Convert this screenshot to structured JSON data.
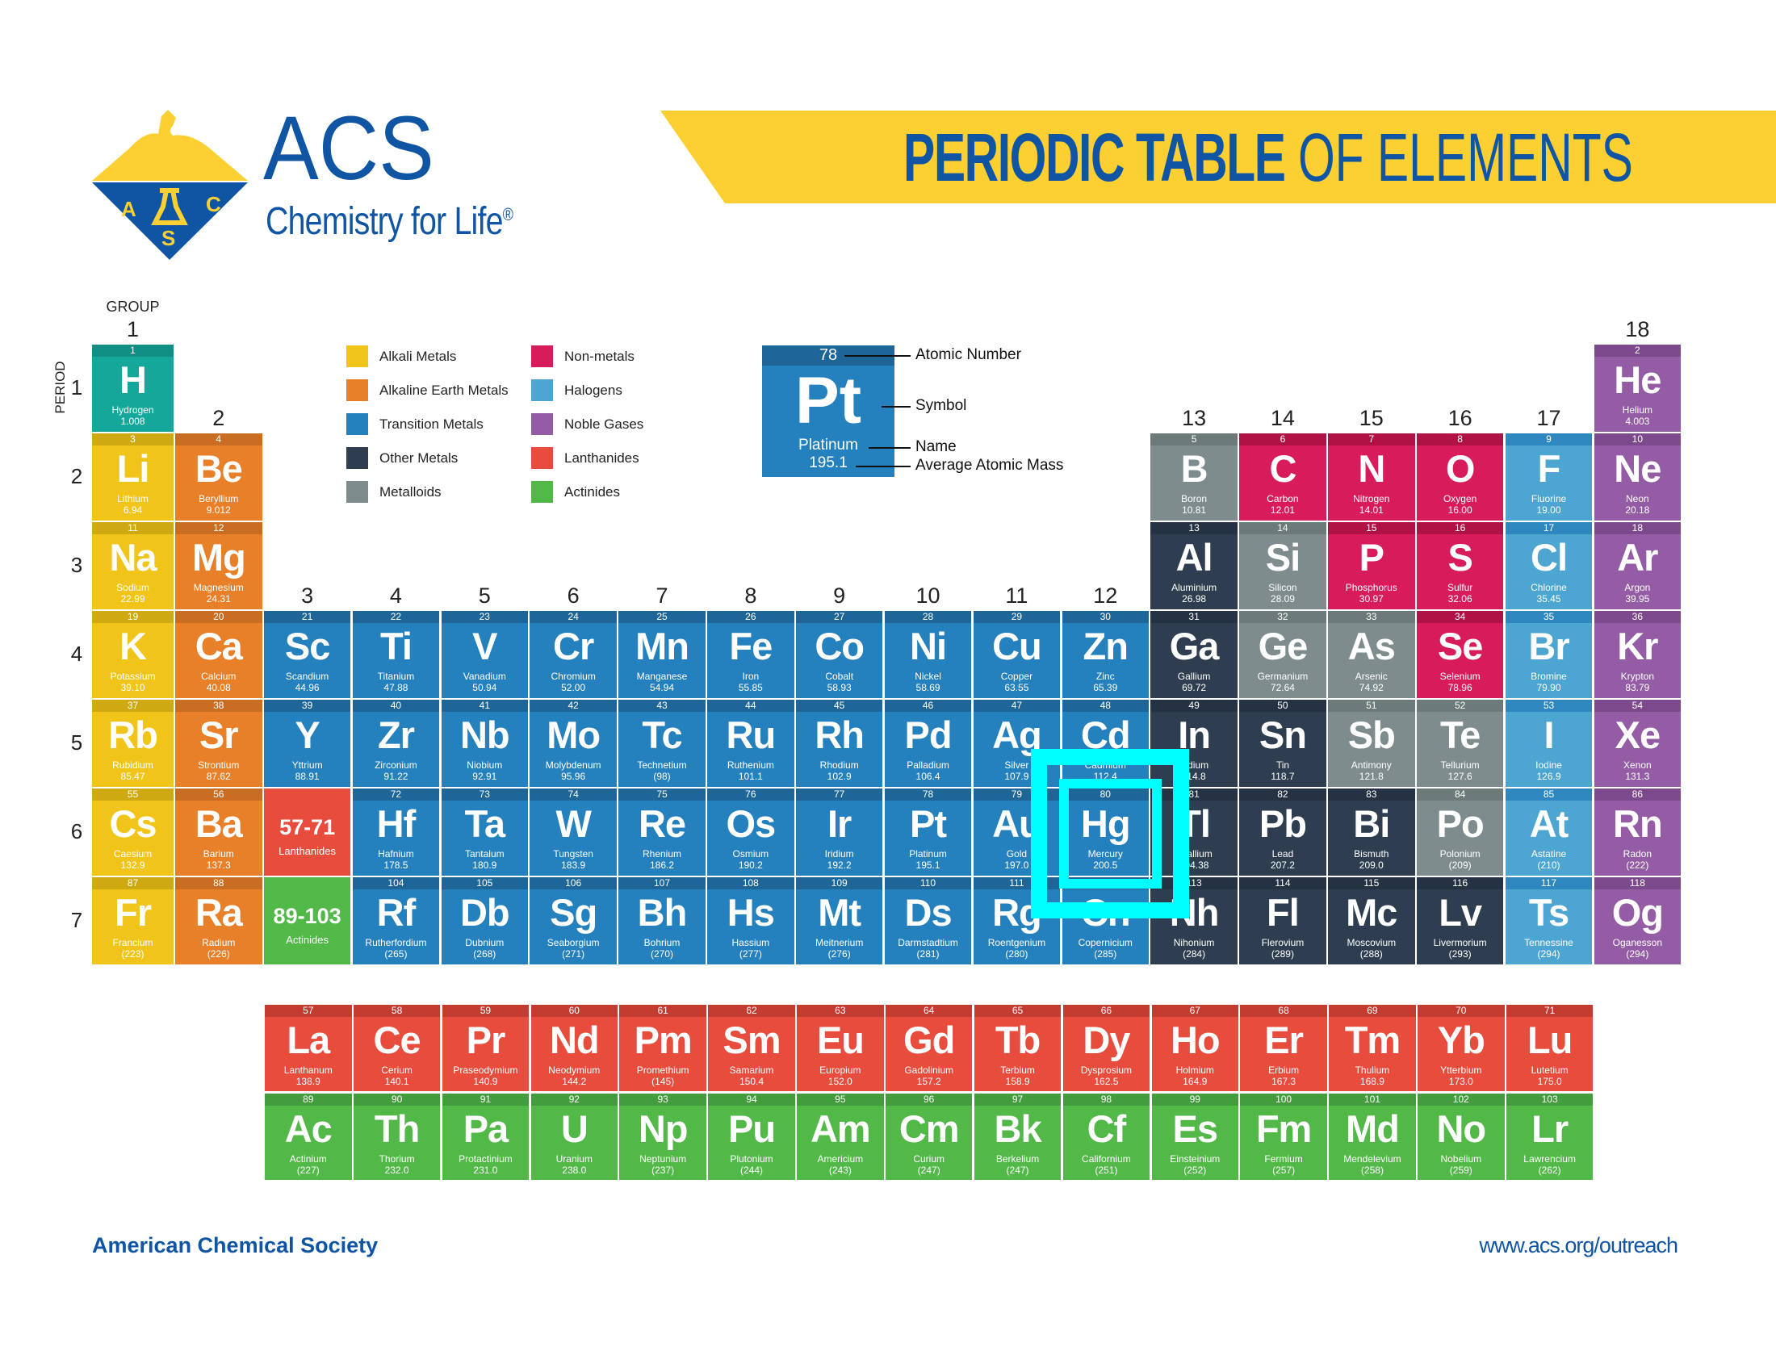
{
  "header": {
    "logo_text": "ACS",
    "tagline": "Chemistry for Life",
    "tagline_mark": "®",
    "logo_letters": [
      "A",
      "C",
      "S"
    ],
    "title_bold": "PERIODIC TABLE",
    "title_regular": "OF ELEMENTS",
    "brand_blue": "#0f55a3",
    "banner_color": "#fccf32"
  },
  "axis": {
    "group_label": "GROUP",
    "period_label": "PERIOD",
    "groups": [
      "1",
      "2",
      "3",
      "4",
      "5",
      "6",
      "7",
      "8",
      "9",
      "10",
      "11",
      "12",
      "13",
      "14",
      "15",
      "16",
      "17",
      "18"
    ],
    "periods": [
      "1",
      "2",
      "3",
      "4",
      "5",
      "6",
      "7"
    ]
  },
  "legend": [
    {
      "key": "am",
      "label": "Alkali Metals"
    },
    {
      "key": "ae",
      "label": "Alkaline Earth Metals"
    },
    {
      "key": "tm",
      "label": "Transition Metals"
    },
    {
      "key": "om",
      "label": "Other Metals"
    },
    {
      "key": "ml",
      "label": "Metalloids"
    },
    {
      "key": "nm",
      "label": "Non-metals"
    },
    {
      "key": "ha",
      "label": "Halogens"
    },
    {
      "key": "ng",
      "label": "Noble Gases"
    },
    {
      "key": "la",
      "label": "Lanthanides"
    },
    {
      "key": "ac",
      "label": "Actinides"
    }
  ],
  "key": {
    "number": "78",
    "symbol": "Pt",
    "name": "Platinum",
    "mass": "195.1",
    "labels": {
      "number": "Atomic Number",
      "symbol": "Symbol",
      "name": "Name",
      "mass": "Average Atomic Mass"
    }
  },
  "colors": {
    "hy": {
      "main": "#14a89b",
      "strip": "#128f85"
    },
    "am": {
      "main": "#f1c419",
      "strip": "#cfa912"
    },
    "ae": {
      "main": "#e8802a",
      "strip": "#c96d22"
    },
    "tm": {
      "main": "#2481bd",
      "strip": "#1f6698"
    },
    "om": {
      "main": "#2e3e50",
      "strip": "#243243"
    },
    "ml": {
      "main": "#7f8c8d",
      "strip": "#6c7a7a"
    },
    "nm": {
      "main": "#d81c5b",
      "strip": "#b01246"
    },
    "ha": {
      "main": "#4da5d2",
      "strip": "#2f87bf"
    },
    "ng": {
      "main": "#955ca6",
      "strip": "#7c4a8c"
    },
    "la": {
      "main": "#e84c3d",
      "strip": "#c43b30"
    },
    "ac": {
      "main": "#52b848",
      "strip": "#439d3c"
    },
    "highlight": "#00ffff"
  },
  "placeholders": [
    {
      "range": "57-71",
      "label": "Lanthanides",
      "cat": "la",
      "period": 6,
      "group": 3
    },
    {
      "range": "89-103",
      "label": "Actinides",
      "cat": "ac",
      "period": 7,
      "group": 3
    }
  ],
  "highlighted_element": "Hg",
  "elements": [
    [
      1,
      "H",
      "Hydrogen",
      "1.008",
      "hy",
      1,
      1
    ],
    [
      2,
      "He",
      "Helium",
      "4.003",
      "ng",
      1,
      18
    ],
    [
      3,
      "Li",
      "Lithium",
      "6.94",
      "am",
      2,
      1
    ],
    [
      4,
      "Be",
      "Beryllium",
      "9.012",
      "ae",
      2,
      2
    ],
    [
      5,
      "B",
      "Boron",
      "10.81",
      "ml",
      2,
      13
    ],
    [
      6,
      "C",
      "Carbon",
      "12.01",
      "nm",
      2,
      14
    ],
    [
      7,
      "N",
      "Nitrogen",
      "14.01",
      "nm",
      2,
      15
    ],
    [
      8,
      "O",
      "Oxygen",
      "16.00",
      "nm",
      2,
      16
    ],
    [
      9,
      "F",
      "Fluorine",
      "19.00",
      "ha",
      2,
      17
    ],
    [
      10,
      "Ne",
      "Neon",
      "20.18",
      "ng",
      2,
      18
    ],
    [
      11,
      "Na",
      "Sodium",
      "22.99",
      "am",
      3,
      1
    ],
    [
      12,
      "Mg",
      "Magnesium",
      "24.31",
      "ae",
      3,
      2
    ],
    [
      13,
      "Al",
      "Aluminium",
      "26.98",
      "om",
      3,
      13
    ],
    [
      14,
      "Si",
      "Silicon",
      "28.09",
      "ml",
      3,
      14
    ],
    [
      15,
      "P",
      "Phosphorus",
      "30.97",
      "nm",
      3,
      15
    ],
    [
      16,
      "S",
      "Sulfur",
      "32.06",
      "nm",
      3,
      16
    ],
    [
      17,
      "Cl",
      "Chlorine",
      "35.45",
      "ha",
      3,
      17
    ],
    [
      18,
      "Ar",
      "Argon",
      "39.95",
      "ng",
      3,
      18
    ],
    [
      19,
      "K",
      "Potassium",
      "39.10",
      "am",
      4,
      1
    ],
    [
      20,
      "Ca",
      "Calcium",
      "40.08",
      "ae",
      4,
      2
    ],
    [
      21,
      "Sc",
      "Scandium",
      "44.96",
      "tm",
      4,
      3
    ],
    [
      22,
      "Ti",
      "Titanium",
      "47.88",
      "tm",
      4,
      4
    ],
    [
      23,
      "V",
      "Vanadium",
      "50.94",
      "tm",
      4,
      5
    ],
    [
      24,
      "Cr",
      "Chromium",
      "52.00",
      "tm",
      4,
      6
    ],
    [
      25,
      "Mn",
      "Manganese",
      "54.94",
      "tm",
      4,
      7
    ],
    [
      26,
      "Fe",
      "Iron",
      "55.85",
      "tm",
      4,
      8
    ],
    [
      27,
      "Co",
      "Cobalt",
      "58.93",
      "tm",
      4,
      9
    ],
    [
      28,
      "Ni",
      "Nickel",
      "58.69",
      "tm",
      4,
      10
    ],
    [
      29,
      "Cu",
      "Copper",
      "63.55",
      "tm",
      4,
      11
    ],
    [
      30,
      "Zn",
      "Zinc",
      "65.39",
      "tm",
      4,
      12
    ],
    [
      31,
      "Ga",
      "Gallium",
      "69.72",
      "om",
      4,
      13
    ],
    [
      32,
      "Ge",
      "Germanium",
      "72.64",
      "ml",
      4,
      14
    ],
    [
      33,
      "As",
      "Arsenic",
      "74.92",
      "ml",
      4,
      15
    ],
    [
      34,
      "Se",
      "Selenium",
      "78.96",
      "nm",
      4,
      16
    ],
    [
      35,
      "Br",
      "Bromine",
      "79.90",
      "ha",
      4,
      17
    ],
    [
      36,
      "Kr",
      "Krypton",
      "83.79",
      "ng",
      4,
      18
    ],
    [
      37,
      "Rb",
      "Rubidium",
      "85.47",
      "am",
      5,
      1
    ],
    [
      38,
      "Sr",
      "Strontium",
      "87.62",
      "ae",
      5,
      2
    ],
    [
      39,
      "Y",
      "Yttrium",
      "88.91",
      "tm",
      5,
      3
    ],
    [
      40,
      "Zr",
      "Zirconium",
      "91.22",
      "tm",
      5,
      4
    ],
    [
      41,
      "Nb",
      "Niobium",
      "92.91",
      "tm",
      5,
      5
    ],
    [
      42,
      "Mo",
      "Molybdenum",
      "95.96",
      "tm",
      5,
      6
    ],
    [
      43,
      "Tc",
      "Technetium",
      "(98)",
      "tm",
      5,
      7
    ],
    [
      44,
      "Ru",
      "Ruthenium",
      "101.1",
      "tm",
      5,
      8
    ],
    [
      45,
      "Rh",
      "Rhodium",
      "102.9",
      "tm",
      5,
      9
    ],
    [
      46,
      "Pd",
      "Palladium",
      "106.4",
      "tm",
      5,
      10
    ],
    [
      47,
      "Ag",
      "Silver",
      "107.9",
      "tm",
      5,
      11
    ],
    [
      48,
      "Cd",
      "Cadmium",
      "112.4",
      "tm",
      5,
      12
    ],
    [
      49,
      "In",
      "Indium",
      "114.8",
      "om",
      5,
      13
    ],
    [
      50,
      "Sn",
      "Tin",
      "118.7",
      "om",
      5,
      14
    ],
    [
      51,
      "Sb",
      "Antimony",
      "121.8",
      "ml",
      5,
      15
    ],
    [
      52,
      "Te",
      "Tellurium",
      "127.6",
      "ml",
      5,
      16
    ],
    [
      53,
      "I",
      "Iodine",
      "126.9",
      "ha",
      5,
      17
    ],
    [
      54,
      "Xe",
      "Xenon",
      "131.3",
      "ng",
      5,
      18
    ],
    [
      55,
      "Cs",
      "Caesium",
      "132.9",
      "am",
      6,
      1
    ],
    [
      56,
      "Ba",
      "Barium",
      "137.3",
      "ae",
      6,
      2
    ],
    [
      72,
      "Hf",
      "Hafnium",
      "178.5",
      "tm",
      6,
      4
    ],
    [
      73,
      "Ta",
      "Tantalum",
      "180.9",
      "tm",
      6,
      5
    ],
    [
      74,
      "W",
      "Tungsten",
      "183.9",
      "tm",
      6,
      6
    ],
    [
      75,
      "Re",
      "Rhenium",
      "186.2",
      "tm",
      6,
      7
    ],
    [
      76,
      "Os",
      "Osmium",
      "190.2",
      "tm",
      6,
      8
    ],
    [
      77,
      "Ir",
      "Iridium",
      "192.2",
      "tm",
      6,
      9
    ],
    [
      78,
      "Pt",
      "Platinum",
      "195.1",
      "tm",
      6,
      10
    ],
    [
      79,
      "Au",
      "Gold",
      "197.0",
      "tm",
      6,
      11
    ],
    [
      80,
      "Hg",
      "Mercury",
      "200.5",
      "tm",
      6,
      12
    ],
    [
      81,
      "Tl",
      "Thallium",
      "204.38",
      "om",
      6,
      13
    ],
    [
      82,
      "Pb",
      "Lead",
      "207.2",
      "om",
      6,
      14
    ],
    [
      83,
      "Bi",
      "Bismuth",
      "209.0",
      "om",
      6,
      15
    ],
    [
      84,
      "Po",
      "Polonium",
      "(209)",
      "ml",
      6,
      16
    ],
    [
      85,
      "At",
      "Astatine",
      "(210)",
      "ha",
      6,
      17
    ],
    [
      86,
      "Rn",
      "Radon",
      "(222)",
      "ng",
      6,
      18
    ],
    [
      87,
      "Fr",
      "Francium",
      "(223)",
      "am",
      7,
      1
    ],
    [
      88,
      "Ra",
      "Radium",
      "(226)",
      "ae",
      7,
      2
    ],
    [
      104,
      "Rf",
      "Rutherfordium",
      "(265)",
      "tm",
      7,
      4
    ],
    [
      105,
      "Db",
      "Dubnium",
      "(268)",
      "tm",
      7,
      5
    ],
    [
      106,
      "Sg",
      "Seaborgium",
      "(271)",
      "tm",
      7,
      6
    ],
    [
      107,
      "Bh",
      "Bohrium",
      "(270)",
      "tm",
      7,
      7
    ],
    [
      108,
      "Hs",
      "Hassium",
      "(277)",
      "tm",
      7,
      8
    ],
    [
      109,
      "Mt",
      "Meitnerium",
      "(276)",
      "tm",
      7,
      9
    ],
    [
      110,
      "Ds",
      "Darmstadtium",
      "(281)",
      "tm",
      7,
      10
    ],
    [
      111,
      "Rg",
      "Roentgenium",
      "(280)",
      "tm",
      7,
      11
    ],
    [
      112,
      "Cn",
      "Copernicium",
      "(285)",
      "tm",
      7,
      12
    ],
    [
      113,
      "Nh",
      "Nihonium",
      "(284)",
      "om",
      7,
      13
    ],
    [
      114,
      "Fl",
      "Flerovium",
      "(289)",
      "om",
      7,
      14
    ],
    [
      115,
      "Mc",
      "Moscovium",
      "(288)",
      "om",
      7,
      15
    ],
    [
      116,
      "Lv",
      "Livermorium",
      "(293)",
      "om",
      7,
      16
    ],
    [
      117,
      "Ts",
      "Tennessine",
      "(294)",
      "ha",
      7,
      17
    ],
    [
      118,
      "Og",
      "Oganesson",
      "(294)",
      "ng",
      7,
      18
    ]
  ],
  "lanthanides": [
    [
      57,
      "La",
      "Lanthanum",
      "138.9"
    ],
    [
      58,
      "Ce",
      "Cerium",
      "140.1"
    ],
    [
      59,
      "Pr",
      "Praseodymium",
      "140.9"
    ],
    [
      60,
      "Nd",
      "Neodymium",
      "144.2"
    ],
    [
      61,
      "Pm",
      "Promethium",
      "(145)"
    ],
    [
      62,
      "Sm",
      "Samarium",
      "150.4"
    ],
    [
      63,
      "Eu",
      "Europium",
      "152.0"
    ],
    [
      64,
      "Gd",
      "Gadolinium",
      "157.2"
    ],
    [
      65,
      "Tb",
      "Terbium",
      "158.9"
    ],
    [
      66,
      "Dy",
      "Dysprosium",
      "162.5"
    ],
    [
      67,
      "Ho",
      "Holmium",
      "164.9"
    ],
    [
      68,
      "Er",
      "Erbium",
      "167.3"
    ],
    [
      69,
      "Tm",
      "Thulium",
      "168.9"
    ],
    [
      70,
      "Yb",
      "Ytterbium",
      "173.0"
    ],
    [
      71,
      "Lu",
      "Lutetium",
      "175.0"
    ]
  ],
  "actinides": [
    [
      89,
      "Ac",
      "Actinium",
      "(227)"
    ],
    [
      90,
      "Th",
      "Thorium",
      "232.0"
    ],
    [
      91,
      "Pa",
      "Protactinium",
      "231.0"
    ],
    [
      92,
      "U",
      "Uranium",
      "238.0"
    ],
    [
      93,
      "Np",
      "Neptunium",
      "(237)"
    ],
    [
      94,
      "Pu",
      "Plutonium",
      "(244)"
    ],
    [
      95,
      "Am",
      "Americium",
      "(243)"
    ],
    [
      96,
      "Cm",
      "Curium",
      "(247)"
    ],
    [
      97,
      "Bk",
      "Berkelium",
      "(247)"
    ],
    [
      98,
      "Cf",
      "Californium",
      "(251)"
    ],
    [
      99,
      "Es",
      "Einsteinium",
      "(252)"
    ],
    [
      100,
      "Fm",
      "Fermium",
      "(257)"
    ],
    [
      101,
      "Md",
      "Mendelevium",
      "(258)"
    ],
    [
      102,
      "No",
      "Nobelium",
      "(259)"
    ],
    [
      103,
      "Lr",
      "Lawrencium",
      "(262)"
    ]
  ],
  "footer": {
    "organization": "American Chemical Society",
    "url": "www.acs.org/outreach"
  }
}
